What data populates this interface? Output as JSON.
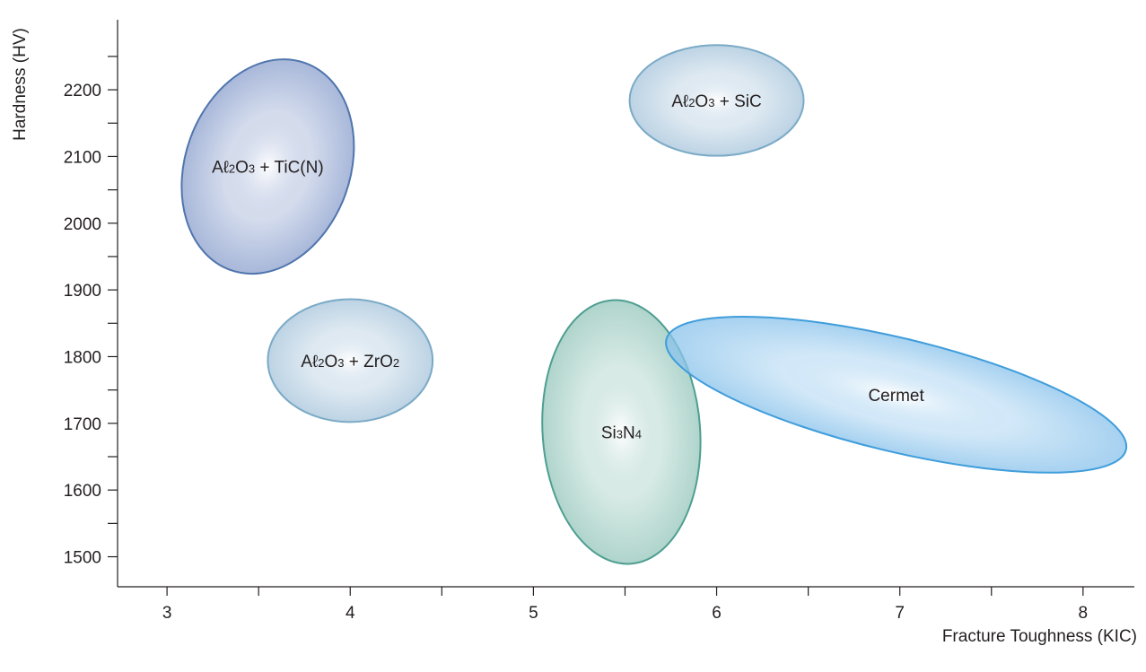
{
  "chart_data": {
    "type": "scatter",
    "title": "",
    "xlabel": "Fracture Toughness (KIC)",
    "ylabel": "Hardness (HV)",
    "xlim": [
      2.73,
      8.28
    ],
    "ylim": [
      1455,
      2305
    ],
    "x_ticks_major": [
      3,
      4,
      5,
      6,
      7,
      8
    ],
    "x_ticks_minor": [
      3.5,
      4.5,
      5.5,
      6.5,
      7.5
    ],
    "y_ticks_major": [
      1500,
      1600,
      1700,
      1800,
      1900,
      2000,
      2100,
      2200
    ],
    "y_ticks_minor": [
      1550,
      1650,
      1750,
      1850,
      1950,
      2050,
      2150,
      2250
    ],
    "grid": false,
    "legend": "none",
    "regions": [
      {
        "label_parts": [
          [
            "Aℓ",
            ""
          ],
          [
            "2",
            "sub"
          ],
          [
            "O",
            ""
          ],
          [
            "3",
            "sub"
          ],
          [
            " + TiC(N)",
            ""
          ]
        ],
        "center_x": 3.55,
        "center_y": 2085,
        "x_range": [
          3.08,
          4.02
        ],
        "y_range": [
          1925,
          2245
        ],
        "rotation_deg": 20,
        "rx_data": 0.45,
        "ry_data": 165,
        "color": "#8fa3cf",
        "stroke": "#4f75ad"
      },
      {
        "label_parts": [
          [
            "Aℓ",
            ""
          ],
          [
            "2",
            "sub"
          ],
          [
            "O",
            ""
          ],
          [
            "3",
            "sub"
          ],
          [
            " + ZrO",
            ""
          ],
          [
            "2",
            "sub"
          ]
        ],
        "center_x": 4.0,
        "center_y": 1794,
        "x_range": [
          3.55,
          4.45
        ],
        "y_range": [
          1702,
          1886
        ],
        "rotation_deg": 0,
        "rx_data": 0.45,
        "ry_data": 92,
        "color": "#a9c6dc",
        "stroke": "#7aaac6"
      },
      {
        "label_parts": [
          [
            "Aℓ",
            ""
          ],
          [
            "2",
            "sub"
          ],
          [
            "O",
            ""
          ],
          [
            "3",
            "sub"
          ],
          [
            " + SiC",
            ""
          ]
        ],
        "center_x": 6.0,
        "center_y": 2184,
        "x_range": [
          5.52,
          6.48
        ],
        "y_range": [
          2101,
          2267
        ],
        "rotation_deg": 0,
        "rx_data": 0.475,
        "ry_data": 83,
        "color": "#a9c6dc",
        "stroke": "#7aaac6"
      },
      {
        "label_parts": [
          [
            "Si",
            ""
          ],
          [
            "3",
            "sub"
          ],
          [
            "N",
            ""
          ],
          [
            "4",
            "sub"
          ]
        ],
        "center_x": 5.48,
        "center_y": 1687,
        "x_range": [
          5.04,
          5.92
        ],
        "y_range": [
          1487,
          1887
        ],
        "rotation_deg": -4,
        "rx_data": 0.43,
        "ry_data": 198,
        "color": "#98c8bd",
        "stroke": "#4e9e91"
      },
      {
        "label_parts": [
          [
            "Cermet",
            ""
          ]
        ],
        "center_x": 6.98,
        "center_y": 1743,
        "x_range": [
          5.7,
          8.28
        ],
        "y_range": [
          1612,
          1873
        ],
        "rotation_deg": 13.5,
        "rx_data": 1.29,
        "ry_data": 85,
        "color": "#8cc4ec",
        "stroke": "#3f9ddb"
      }
    ]
  }
}
